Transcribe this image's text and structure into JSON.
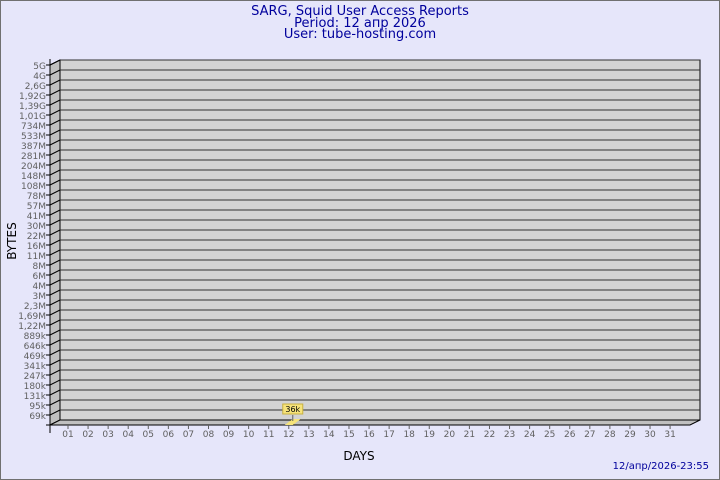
{
  "header": {
    "title": "SARG, Squid User Access Reports",
    "period": "Period: 12 апр 2026",
    "user": "User: tube-hosting.com"
  },
  "timestamp": "12/апр/2026-23:55",
  "colors": {
    "background": "#e6e6fa",
    "plot": "#d3d3d3",
    "text": "#00009c",
    "bar": "#f6e37a"
  },
  "chart_data": {
    "type": "bar",
    "xlabel": "DAYS",
    "ylabel": "BYTES",
    "y_scale": "log",
    "y_ticks": [
      "69k",
      "95k",
      "131k",
      "180k",
      "247k",
      "341k",
      "469k",
      "646k",
      "889k",
      "1,22M",
      "1,69M",
      "2,3M",
      "3M",
      "4M",
      "6M",
      "8M",
      "11M",
      "16M",
      "22M",
      "30M",
      "41M",
      "57M",
      "78M",
      "108M",
      "148M",
      "204M",
      "281M",
      "387M",
      "533M",
      "734M",
      "1,01G",
      "1,39G",
      "1,92G",
      "2,6G",
      "4G",
      "5G"
    ],
    "categories": [
      "01",
      "02",
      "03",
      "04",
      "05",
      "06",
      "07",
      "08",
      "09",
      "10",
      "11",
      "12",
      "13",
      "14",
      "15",
      "16",
      "17",
      "18",
      "19",
      "20",
      "21",
      "22",
      "23",
      "24",
      "25",
      "26",
      "27",
      "28",
      "29",
      "30",
      "31"
    ],
    "series": [
      {
        "values": [
          null,
          null,
          null,
          null,
          null,
          null,
          null,
          null,
          null,
          null,
          null,
          36000,
          null,
          null,
          null,
          null,
          null,
          null,
          null,
          null,
          null,
          null,
          null,
          null,
          null,
          null,
          null,
          null,
          null,
          null,
          null
        ]
      }
    ],
    "data_labels": {
      "12": "36k"
    },
    "grid": true
  }
}
